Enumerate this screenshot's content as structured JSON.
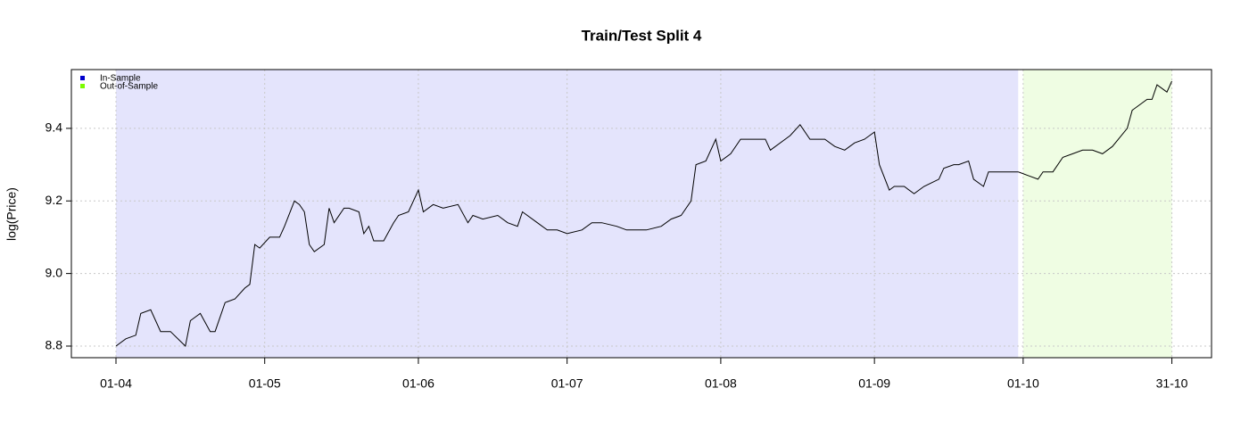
{
  "chart_data": {
    "type": "line",
    "title": "Train/Test Split 4",
    "y_label": "log(Price)",
    "x": [
      "01-04",
      "03-04",
      "05-04",
      "06-04",
      "08-04",
      "10-04",
      "12-04",
      "15-04",
      "16-04",
      "18-04",
      "20-04",
      "21-04",
      "23-04",
      "25-04",
      "27-04",
      "28-04",
      "29-04",
      "30-04",
      "02-05",
      "04-05",
      "05-05",
      "07-05",
      "08-05",
      "09-05",
      "10-05",
      "11-05",
      "13-05",
      "14-05",
      "15-05",
      "17-05",
      "18-05",
      "20-05",
      "21-05",
      "22-05",
      "23-05",
      "25-05",
      "27-05",
      "28-05",
      "30-05",
      "01-06",
      "02-06",
      "04-06",
      "06-06",
      "09-06",
      "11-06",
      "12-06",
      "14-06",
      "17-06",
      "19-06",
      "21-06",
      "22-06",
      "25-06",
      "27-06",
      "29-06",
      "01-07",
      "04-07",
      "06-07",
      "08-07",
      "11-07",
      "13-07",
      "17-07",
      "20-07",
      "22-07",
      "24-07",
      "26-07",
      "27-07",
      "29-07",
      "31-07",
      "01-08",
      "03-08",
      "05-08",
      "07-08",
      "09-08",
      "10-08",
      "11-08",
      "14-08",
      "15-08",
      "17-08",
      "19-08",
      "21-08",
      "22-08",
      "24-08",
      "26-08",
      "28-08",
      "30-08",
      "01-09",
      "02-09",
      "04-09",
      "05-09",
      "07-09",
      "09-09",
      "11-09",
      "14-09",
      "15-09",
      "17-09",
      "18-09",
      "20-09",
      "21-09",
      "23-09",
      "24-09",
      "26-09",
      "29-09",
      "30-09",
      "02-10",
      "04-10",
      "05-10",
      "07-10",
      "09-10",
      "11-10",
      "13-10",
      "15-10",
      "17-10",
      "19-10",
      "22-10",
      "23-10",
      "24-10",
      "26-10",
      "27-10",
      "28-10",
      "30-10",
      "31-10"
    ],
    "values": [
      8.8,
      8.82,
      8.83,
      8.89,
      8.9,
      8.84,
      8.84,
      8.8,
      8.87,
      8.89,
      8.84,
      8.84,
      8.92,
      8.93,
      8.96,
      8.97,
      9.08,
      9.07,
      9.1,
      9.1,
      9.13,
      9.2,
      9.19,
      9.17,
      9.08,
      9.06,
      9.08,
      9.18,
      9.14,
      9.18,
      9.18,
      9.17,
      9.11,
      9.13,
      9.09,
      9.09,
      9.14,
      9.16,
      9.17,
      9.23,
      9.17,
      9.19,
      9.18,
      9.19,
      9.14,
      9.16,
      9.15,
      9.16,
      9.14,
      9.13,
      9.17,
      9.14,
      9.12,
      9.12,
      9.11,
      9.12,
      9.14,
      9.14,
      9.13,
      9.12,
      9.12,
      9.13,
      9.15,
      9.16,
      9.2,
      9.3,
      9.31,
      9.37,
      9.31,
      9.33,
      9.37,
      9.37,
      9.37,
      9.37,
      9.34,
      9.37,
      9.38,
      9.41,
      9.37,
      9.37,
      9.37,
      9.35,
      9.34,
      9.36,
      9.37,
      9.39,
      9.3,
      9.23,
      9.24,
      9.24,
      9.22,
      9.24,
      9.26,
      9.29,
      9.3,
      9.3,
      9.31,
      9.26,
      9.24,
      9.28,
      9.28,
      9.28,
      9.28,
      9.27,
      9.26,
      9.28,
      9.28,
      9.32,
      9.33,
      9.34,
      9.34,
      9.33,
      9.35,
      9.4,
      9.45,
      9.46,
      9.48,
      9.48,
      9.52,
      9.5,
      9.53
    ],
    "color": "#000000",
    "regions": [
      {
        "name": "In-Sample",
        "color": "#0000cc",
        "fill": "#e4e4fc",
        "start": "01-04",
        "end": "30-09"
      },
      {
        "name": "Out-of-Sample",
        "color": "#7cfc00",
        "fill": "#effde3",
        "start": "01-10",
        "end": "31-10"
      }
    ],
    "xlim": [
      "23-03",
      "08-11"
    ],
    "xticks": [
      "01-04",
      "01-05",
      "01-06",
      "01-07",
      "01-08",
      "01-09",
      "01-10",
      "31-10"
    ],
    "ylim": [
      8.768,
      9.562
    ],
    "yticks": [
      8.8,
      {
        "value": 9.0,
        "label": "9.0"
      },
      9.2,
      9.4
    ],
    "grid": true,
    "legend": "top-left"
  }
}
